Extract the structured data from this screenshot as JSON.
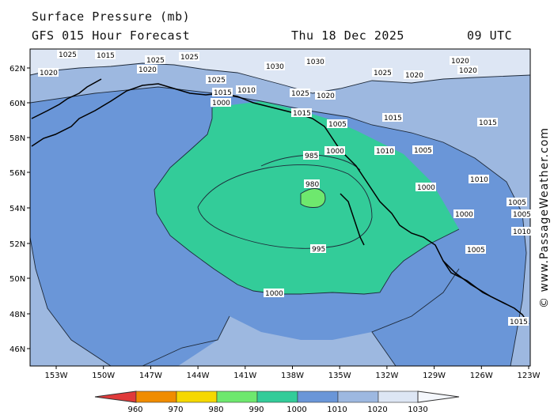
{
  "header": {
    "title": "Surface Pressure (mb)",
    "subtitle": "GFS 015 Hour Forecast",
    "date": "Thu 18 Dec 2025",
    "time": "09 UTC"
  },
  "credit": "© www.PassageWeather.com",
  "axes": {
    "lat_labels": [
      "62N",
      "60N",
      "58N",
      "56N",
      "54N",
      "52N",
      "50N",
      "48N",
      "46N"
    ],
    "lon_labels": [
      "153W",
      "150W",
      "147W",
      "144W",
      "141W",
      "138W",
      "135W",
      "132W",
      "129W",
      "126W",
      "123W"
    ]
  },
  "contour_labels": {
    "l1015_a": "1015",
    "l1015_b": "1015",
    "l1015_c": "1015",
    "l1015_d": "1015",
    "l1015_e": "1015",
    "l1015_f": "1015",
    "l1010_a": "1010",
    "l1010_b": "1010",
    "l1010_c": "1010",
    "l1010_d": "1010",
    "l1005_a": "1005",
    "l1005_b": "1005",
    "l1005_c": "1005",
    "l1005_d": "1005",
    "l1005_e": "1005",
    "l1000_a": "1000",
    "l1000_b": "1000",
    "l1000_c": "1000",
    "l1000_d": "1000",
    "l1000_e": "1000",
    "l995": "995",
    "l985": "985",
    "l980": "980",
    "l1020_a": "1020",
    "l1020_b": "1020",
    "l1020_c": "1020",
    "l1020_d": "1020",
    "l1020_e": "1020",
    "l1025_a": "1025",
    "l1025_b": "1025",
    "l1025_c": "1025",
    "l1025_d": "1025",
    "l1025_e": "1025",
    "l1030_a": "1030",
    "l1030_b": "1030",
    "l1020_f": "1020",
    "l1025_f": "1025"
  },
  "legend": {
    "values": [
      "960",
      "970",
      "980",
      "990",
      "1000",
      "1010",
      "1020",
      "1030"
    ],
    "colors": [
      "#e03a3a",
      "#f08c00",
      "#f5d800",
      "#6ee86e",
      "#33cc99",
      "#6a96d8",
      "#9db8e0",
      "#dde6f4"
    ]
  },
  "colors": {
    "band_1030": "#dde6f4",
    "band_1020": "#9db8e0",
    "band_1010": "#6a96d8",
    "band_1000": "#33cc99",
    "band_990": "#6ee86e"
  }
}
